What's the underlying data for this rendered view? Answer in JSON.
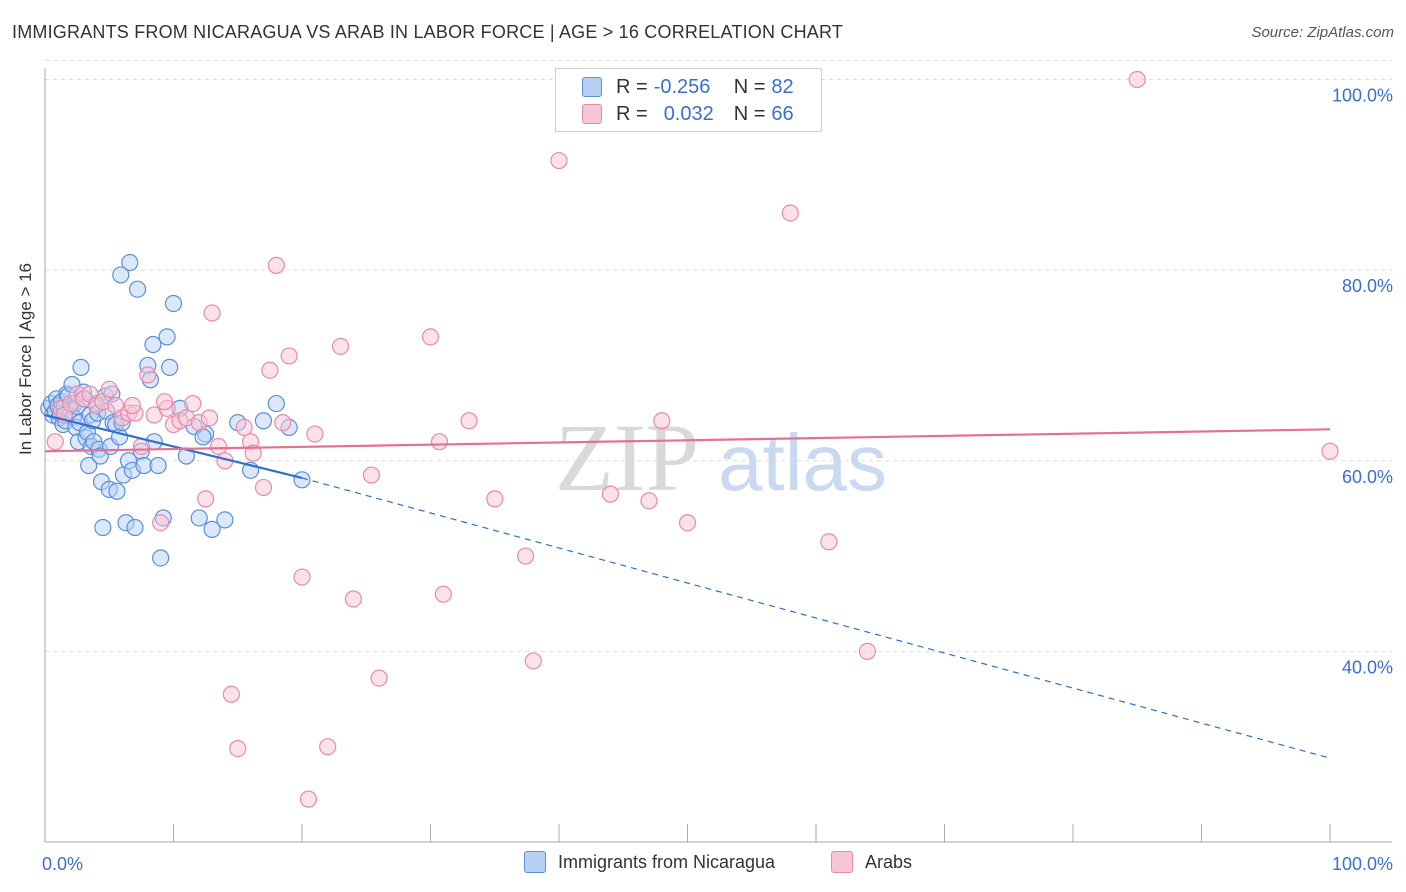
{
  "title": "IMMIGRANTS FROM NICARAGUA VS ARAB IN LABOR FORCE | AGE > 16 CORRELATION CHART",
  "source": "Source: ZipAtlas.com",
  "legend": {
    "items": [
      {
        "r_label": "R =",
        "r_value": "-0.256",
        "n_label": "N =",
        "n_value": "82"
      },
      {
        "r_label": "R =",
        "r_value": "0.032",
        "n_label": "N =",
        "n_value": "66"
      }
    ],
    "series_names": [
      "Immigrants from Nicaragua",
      "Arabs"
    ]
  },
  "watermark": {
    "zip": "ZIP",
    "atlas": "atlas"
  },
  "colors": {
    "blue_fill": "#b7d1f5",
    "blue_stroke": "#5b8fdc",
    "blue_line": "#2f6fd0",
    "pink_fill": "#f7c6d6",
    "pink_stroke": "#e98aaa",
    "pink_line": "#e5708f",
    "axis_text": "#3a6fd0",
    "grid": "#dddddd"
  },
  "chart_data": {
    "type": "scatter",
    "title": "IMMIGRANTS FROM NICARAGUA VS ARAB IN LABOR FORCE | AGE > 16 CORRELATION CHART",
    "xlabel": "",
    "ylabel": "In Labor Force | Age > 16",
    "xlim": [
      0,
      100
    ],
    "ylim": [
      20,
      101
    ],
    "x_tick_labels": [
      "0.0%",
      "100.0%"
    ],
    "y_ticks": [
      40,
      60,
      80,
      100
    ],
    "y_tick_labels": [
      "40.0%",
      "60.0%",
      "80.0%",
      "100.0%"
    ],
    "grid": true,
    "series": [
      {
        "name": "Immigrants from Nicaragua",
        "color": "#5b8fdc",
        "x": [
          0.3,
          0.5,
          0.6,
          0.8,
          0.9,
          1.0,
          1.1,
          1.2,
          1.3,
          1.4,
          1.5,
          1.6,
          1.7,
          1.8,
          2.0,
          2.1,
          2.2,
          2.3,
          2.4,
          2.5,
          2.6,
          2.7,
          2.8,
          3.0,
          3.1,
          3.2,
          3.3,
          3.4,
          3.5,
          3.6,
          3.7,
          3.8,
          4.0,
          4.1,
          4.2,
          4.3,
          4.4,
          4.5,
          4.7,
          4.8,
          5.0,
          5.1,
          5.2,
          5.3,
          5.5,
          5.6,
          5.8,
          6.0,
          6.1,
          6.3,
          6.5,
          6.6,
          6.8,
          7.0,
          7.2,
          7.5,
          7.7,
          8.0,
          8.2,
          8.5,
          8.8,
          9.0,
          9.2,
          9.5,
          10.0,
          10.5,
          11.0,
          12.0,
          12.5,
          13.0,
          14.0,
          15.0,
          16.0,
          17.0,
          18.0,
          19.0,
          20.0,
          5.9,
          8.4,
          11.6,
          9.7,
          12.3
        ],
        "y": [
          65.5,
          66.0,
          64.8,
          65.2,
          66.5,
          65.8,
          64.5,
          65.0,
          66.2,
          63.8,
          65.6,
          64.2,
          67.0,
          66.8,
          65.3,
          68.0,
          64.6,
          66.0,
          63.5,
          65.7,
          62.0,
          64.0,
          69.8,
          67.2,
          66.5,
          62.4,
          63.0,
          59.5,
          64.8,
          61.5,
          64.2,
          62.0,
          66.0,
          65.0,
          61.2,
          60.5,
          57.8,
          53.0,
          66.8,
          65.2,
          57.0,
          61.5,
          67.0,
          64.0,
          63.8,
          56.8,
          62.5,
          64.0,
          58.5,
          53.5,
          60.0,
          80.8,
          59.0,
          53.0,
          78.0,
          61.0,
          59.5,
          70.0,
          68.5,
          62.0,
          59.5,
          49.8,
          54.0,
          73.0,
          76.5,
          65.5,
          60.5,
          54.0,
          62.8,
          52.8,
          53.8,
          64.0,
          59.0,
          64.2,
          66.0,
          63.5,
          58.0,
          79.5,
          72.2,
          63.6,
          69.8,
          62.5
        ],
        "trend_y_at_x0": 64.8,
        "trend_solid_to_x": 20,
        "trend_y_at_x20": 58.2,
        "trend_y_at_x100": 28.8
      },
      {
        "name": "Arabs",
        "color": "#e98aaa",
        "x": [
          0.8,
          1.2,
          1.5,
          2.0,
          2.5,
          3.0,
          3.5,
          4.0,
          4.5,
          5.0,
          5.5,
          6.0,
          6.5,
          7.0,
          7.5,
          8.0,
          8.5,
          9.0,
          9.5,
          10.0,
          10.5,
          11.0,
          11.5,
          12.0,
          12.5,
          13.0,
          13.5,
          14.0,
          14.5,
          15.0,
          15.5,
          16.0,
          17.0,
          17.5,
          18.0,
          18.5,
          19.0,
          20.0,
          20.5,
          21.0,
          22.0,
          23.0,
          24.0,
          26.0,
          30.0,
          31.0,
          33.0,
          35.0,
          38.0,
          40.0,
          44.0,
          47.0,
          48.0,
          50.0,
          58.0,
          61.0,
          64.0,
          85.0,
          100.0,
          6.8,
          9.3,
          12.8,
          16.2,
          25.4,
          30.7,
          37.4
        ],
        "y": [
          62.0,
          65.5,
          64.8,
          66.0,
          67.0,
          66.5,
          67.0,
          65.8,
          66.2,
          67.5,
          65.8,
          64.5,
          65.0,
          65.0,
          61.5,
          69.0,
          64.8,
          53.5,
          65.5,
          63.8,
          64.2,
          64.5,
          66.0,
          64.0,
          56.0,
          75.5,
          61.5,
          60.0,
          35.5,
          29.8,
          63.5,
          62.0,
          57.2,
          69.5,
          80.5,
          64.0,
          71.0,
          47.8,
          24.5,
          62.8,
          30.0,
          72.0,
          45.5,
          37.2,
          73.0,
          46.0,
          64.2,
          56.0,
          39.0,
          91.5,
          56.5,
          55.8,
          64.2,
          53.5,
          86.0,
          51.5,
          40.0,
          100.0,
          61.0,
          65.8,
          66.2,
          64.5,
          60.8,
          58.5,
          62.0,
          50.0
        ],
        "trend_y_at_x0": 61.0,
        "trend_y_at_x100": 63.3
      }
    ]
  }
}
